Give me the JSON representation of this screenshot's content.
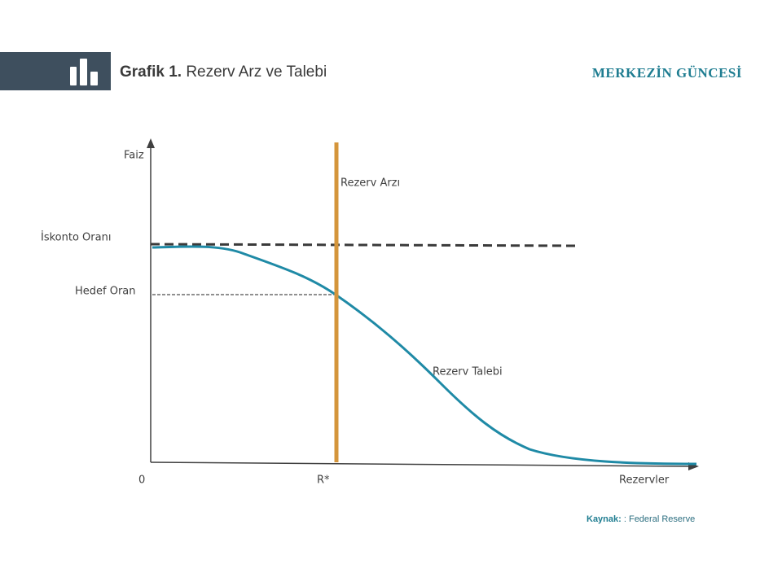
{
  "header": {
    "label": "Grafik 1.",
    "title": "Rezerv Arz ve Talebi",
    "brand": "MERKEZİN GÜNCESİ"
  },
  "diagram": {
    "y_axis": "Faiz",
    "x_axis": "Rezervler",
    "origin": "0",
    "equilibrium_reserves": "R*",
    "discount_rate": "İskonto Oranı",
    "target_rate": "Hedef Oran",
    "supply": "Rezerv Arzı",
    "demand": "Rezerv Talebi"
  },
  "source": {
    "label": "Kaynak:",
    "text": ": Federal Reserve"
  }
}
